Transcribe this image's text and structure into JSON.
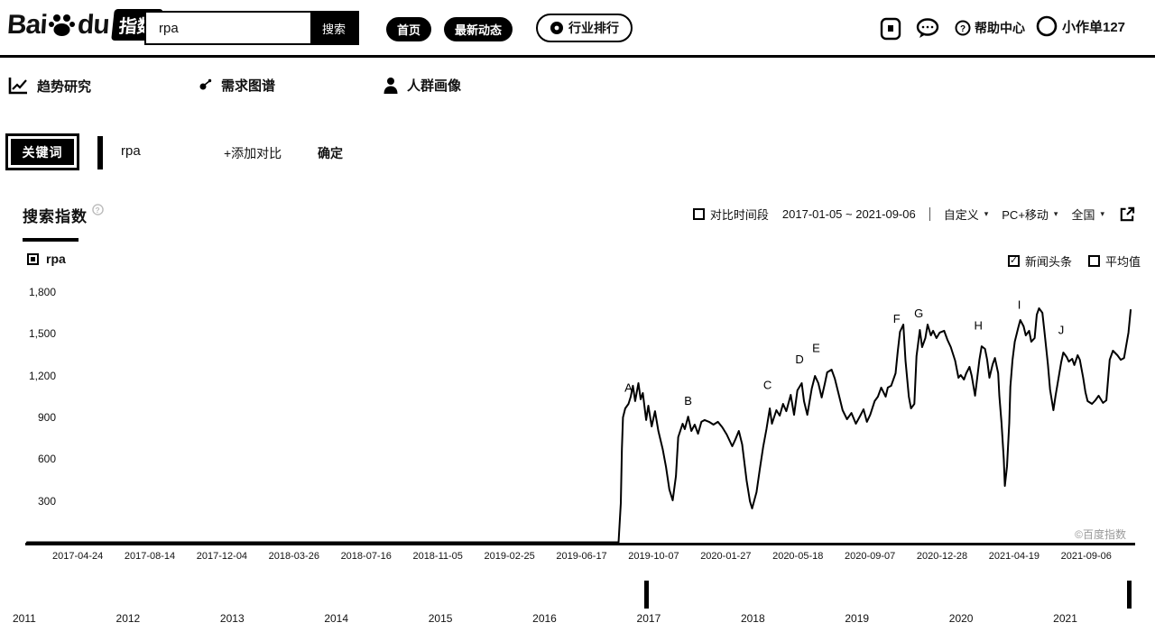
{
  "header": {
    "logo_bai": "Bai",
    "logo_du": "du",
    "logo_cn": "指数",
    "search": {
      "value": "rpa",
      "button_label": "搜索"
    },
    "nav": [
      {
        "label": "首页"
      },
      {
        "label": "最新动态"
      },
      {
        "label": "行业排行"
      }
    ],
    "help_label": "帮助中心",
    "username": "小作单127"
  },
  "tabs": [
    {
      "label": "趋势研究"
    },
    {
      "label": "需求图谱"
    },
    {
      "label": "人群画像"
    }
  ],
  "keyword_bar": {
    "label": "关键词",
    "keyword": "rpa",
    "add_compare": "+添加对比",
    "confirm": "确定"
  },
  "chart_header": {
    "title": "搜索指数",
    "compare_label": "对比时间段",
    "date_range": "2017-01-05 ~ 2021-09-06",
    "custom_label": "自定义",
    "device_label": "PC+移动",
    "region_label": "全国"
  },
  "legend": {
    "series": "rpa",
    "news": "新闻头条",
    "news_checked": "✓",
    "average": "平均值"
  },
  "watermark": "©百度指数",
  "timeline": {
    "years": [
      "2011",
      "2012",
      "2013",
      "2014",
      "2015",
      "2016",
      "2017",
      "2018",
      "2019",
      "2020",
      "2021"
    ]
  },
  "chart_data": {
    "type": "line",
    "title": "搜索指数",
    "series_name": "rpa",
    "x_range": [
      "2017-01-05",
      "2021-09-06"
    ],
    "ylim": [
      0,
      1800
    ],
    "grid": false,
    "yticks": [
      {
        "v": 300,
        "label": "300"
      },
      {
        "v": 600,
        "label": "600"
      },
      {
        "v": 900,
        "label": "900"
      },
      {
        "v": 1200,
        "label": "1,200"
      },
      {
        "v": 1500,
        "label": "1,500"
      },
      {
        "v": 1800,
        "label": "1,800"
      }
    ],
    "xticks": [
      "2017-04-24",
      "2017-08-14",
      "2017-12-04",
      "2018-03-26",
      "2018-07-16",
      "2018-11-05",
      "2019-02-25",
      "2019-06-17",
      "2019-10-07",
      "2020-01-27",
      "2020-05-18",
      "2020-09-07",
      "2020-12-28",
      "2021-04-19",
      "2021-09-06"
    ],
    "annotations": [
      {
        "label": "A",
        "t": 0.545,
        "v": 1085
      },
      {
        "label": "B",
        "t": 0.599,
        "v": 990
      },
      {
        "label": "C",
        "t": 0.671,
        "v": 1105
      },
      {
        "label": "D",
        "t": 0.7,
        "v": 1290
      },
      {
        "label": "E",
        "t": 0.715,
        "v": 1370
      },
      {
        "label": "F",
        "t": 0.788,
        "v": 1580
      },
      {
        "label": "G",
        "t": 0.808,
        "v": 1620
      },
      {
        "label": "H",
        "t": 0.862,
        "v": 1530
      },
      {
        "label": "I",
        "t": 0.899,
        "v": 1680
      },
      {
        "label": "J",
        "t": 0.937,
        "v": 1500
      }
    ],
    "points": [
      [
        0,
        3
      ],
      [
        0.057,
        3
      ],
      [
        0.139,
        3
      ],
      [
        0.221,
        3
      ],
      [
        0.303,
        3
      ],
      [
        0.384,
        3
      ],
      [
        0.466,
        3
      ],
      [
        0.536,
        3
      ],
      [
        0.538,
        285
      ],
      [
        0.539,
        673
      ],
      [
        0.54,
        900
      ],
      [
        0.542,
        965
      ],
      [
        0.545,
        997
      ],
      [
        0.547,
        1049
      ],
      [
        0.549,
        1127
      ],
      [
        0.551,
        1017
      ],
      [
        0.554,
        1146
      ],
      [
        0.556,
        1030
      ],
      [
        0.558,
        1075
      ],
      [
        0.561,
        881
      ],
      [
        0.563,
        984
      ],
      [
        0.566,
        835
      ],
      [
        0.569,
        945
      ],
      [
        0.572,
        803
      ],
      [
        0.576,
        673
      ],
      [
        0.579,
        544
      ],
      [
        0.582,
        382
      ],
      [
        0.585,
        304
      ],
      [
        0.588,
        479
      ],
      [
        0.59,
        758
      ],
      [
        0.594,
        855
      ],
      [
        0.596,
        816
      ],
      [
        0.599,
        906
      ],
      [
        0.602,
        803
      ],
      [
        0.605,
        848
      ],
      [
        0.608,
        783
      ],
      [
        0.611,
        868
      ],
      [
        0.614,
        881
      ],
      [
        0.618,
        868
      ],
      [
        0.622,
        848
      ],
      [
        0.626,
        868
      ],
      [
        0.63,
        829
      ],
      [
        0.634,
        777
      ],
      [
        0.639,
        693
      ],
      [
        0.642,
        745
      ],
      [
        0.645,
        803
      ],
      [
        0.648,
        706
      ],
      [
        0.652,
        447
      ],
      [
        0.655,
        298
      ],
      [
        0.657,
        246
      ],
      [
        0.661,
        363
      ],
      [
        0.664,
        531
      ],
      [
        0.667,
        686
      ],
      [
        0.67,
        816
      ],
      [
        0.673,
        965
      ],
      [
        0.675,
        855
      ],
      [
        0.679,
        952
      ],
      [
        0.682,
        913
      ],
      [
        0.685,
        997
      ],
      [
        0.688,
        945
      ],
      [
        0.692,
        1062
      ],
      [
        0.695,
        919
      ],
      [
        0.698,
        1094
      ],
      [
        0.702,
        1146
      ],
      [
        0.704,
        1017
      ],
      [
        0.707,
        919
      ],
      [
        0.711,
        1107
      ],
      [
        0.714,
        1198
      ],
      [
        0.717,
        1146
      ],
      [
        0.72,
        1043
      ],
      [
        0.723,
        1146
      ],
      [
        0.725,
        1224
      ],
      [
        0.729,
        1243
      ],
      [
        0.732,
        1178
      ],
      [
        0.735,
        1081
      ],
      [
        0.739,
        952
      ],
      [
        0.743,
        887
      ],
      [
        0.747,
        932
      ],
      [
        0.751,
        855
      ],
      [
        0.755,
        913
      ],
      [
        0.758,
        958
      ],
      [
        0.761,
        868
      ],
      [
        0.764,
        919
      ],
      [
        0.768,
        1017
      ],
      [
        0.771,
        1049
      ],
      [
        0.774,
        1114
      ],
      [
        0.778,
        1049
      ],
      [
        0.78,
        1114
      ],
      [
        0.783,
        1127
      ],
      [
        0.787,
        1217
      ],
      [
        0.789,
        1373
      ],
      [
        0.791,
        1515
      ],
      [
        0.794,
        1567
      ],
      [
        0.796,
        1308
      ],
      [
        0.799,
        1049
      ],
      [
        0.801,
        965
      ],
      [
        0.804,
        997
      ],
      [
        0.806,
        1340
      ],
      [
        0.809,
        1528
      ],
      [
        0.811,
        1405
      ],
      [
        0.814,
        1470
      ],
      [
        0.816,
        1567
      ],
      [
        0.819,
        1489
      ],
      [
        0.821,
        1522
      ],
      [
        0.824,
        1470
      ],
      [
        0.827,
        1509
      ],
      [
        0.831,
        1522
      ],
      [
        0.834,
        1457
      ],
      [
        0.837,
        1405
      ],
      [
        0.841,
        1308
      ],
      [
        0.844,
        1185
      ],
      [
        0.846,
        1204
      ],
      [
        0.849,
        1172
      ],
      [
        0.851,
        1217
      ],
      [
        0.854,
        1263
      ],
      [
        0.856,
        1198
      ],
      [
        0.859,
        1056
      ],
      [
        0.86,
        1120
      ],
      [
        0.863,
        1314
      ],
      [
        0.865,
        1411
      ],
      [
        0.868,
        1392
      ],
      [
        0.87,
        1314
      ],
      [
        0.872,
        1185
      ],
      [
        0.875,
        1282
      ],
      [
        0.877,
        1327
      ],
      [
        0.88,
        1217
      ],
      [
        0.881,
        1056
      ],
      [
        0.883,
        861
      ],
      [
        0.885,
        602
      ],
      [
        0.886,
        408
      ],
      [
        0.888,
        550
      ],
      [
        0.89,
        861
      ],
      [
        0.891,
        1120
      ],
      [
        0.893,
        1314
      ],
      [
        0.895,
        1444
      ],
      [
        0.898,
        1541
      ],
      [
        0.9,
        1599
      ],
      [
        0.903,
        1554
      ],
      [
        0.905,
        1489
      ],
      [
        0.908,
        1522
      ],
      [
        0.91,
        1444
      ],
      [
        0.913,
        1470
      ],
      [
        0.915,
        1638
      ],
      [
        0.917,
        1684
      ],
      [
        0.92,
        1651
      ],
      [
        0.922,
        1509
      ],
      [
        0.925,
        1282
      ],
      [
        0.927,
        1101
      ],
      [
        0.93,
        952
      ],
      [
        0.932,
        1056
      ],
      [
        0.935,
        1198
      ],
      [
        0.937,
        1295
      ],
      [
        0.939,
        1366
      ],
      [
        0.942,
        1334
      ],
      [
        0.944,
        1301
      ],
      [
        0.947,
        1321
      ],
      [
        0.949,
        1276
      ],
      [
        0.952,
        1347
      ],
      [
        0.954,
        1314
      ],
      [
        0.957,
        1185
      ],
      [
        0.959,
        1081
      ],
      [
        0.961,
        1017
      ],
      [
        0.965,
        997
      ],
      [
        0.968,
        1023
      ],
      [
        0.971,
        1056
      ],
      [
        0.975,
        1004
      ],
      [
        0.978,
        1023
      ],
      [
        0.981,
        1314
      ],
      [
        0.984,
        1379
      ],
      [
        0.988,
        1347
      ],
      [
        0.991,
        1314
      ],
      [
        0.994,
        1327
      ],
      [
        0.998,
        1509
      ],
      [
        1,
        1671
      ]
    ]
  }
}
